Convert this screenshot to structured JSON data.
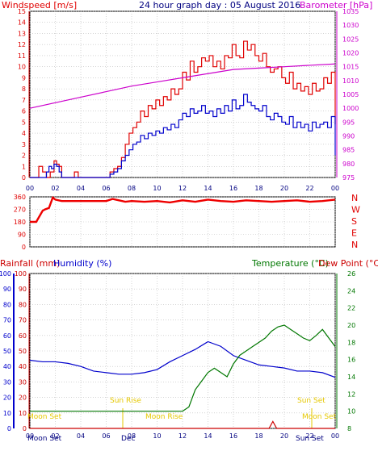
{
  "header": {
    "windspeed_title": "Windspeed [m/s]",
    "main_title": "24 hour graph day : 05 August 2016",
    "barometer_title": "Barometer [hPa]"
  },
  "lower_header": {
    "rainfall_title": "Rainfall (mm)",
    "humidity_title": "Humidity (%)",
    "temperature_title": "Temperature (°C)",
    "dewpoint_title": "Dew Point (°C)"
  },
  "colors": {
    "wind": "#e00000",
    "gust": "#e00000",
    "avg_wind": "#0000cc",
    "barometer": "#cc00cc",
    "direction": "#ee0000",
    "rain": "#cc0000",
    "humidity": "#0000cc",
    "temperature": "#007700",
    "dewpoint": "#cc0000",
    "sun": "#e6c800",
    "grid": "#bbbbbb"
  },
  "chart_data": [
    {
      "type": "line",
      "name": "wind-barometer",
      "x_tick_labels": [
        "00",
        "02",
        "04",
        "06",
        "08",
        "10",
        "12",
        "14",
        "16",
        "18",
        "20",
        "22",
        "00"
      ],
      "ylim_left": [
        0,
        15
      ],
      "yticks_left": [
        0,
        1,
        2,
        3,
        4,
        5,
        6,
        7,
        8,
        9,
        10,
        11,
        12,
        13,
        14,
        15
      ],
      "ylim_right": [
        975,
        1035
      ],
      "yticks_right": [
        975,
        980,
        985,
        990,
        995,
        1000,
        1005,
        1010,
        1015,
        1020,
        1025,
        1030,
        1035
      ],
      "grid": true,
      "series": [
        {
          "key": "gust",
          "axis": "left",
          "x": [
            0,
            0.5,
            0.7,
            1.0,
            1.3,
            1.6,
            1.9,
            2.1,
            2.3,
            2.5,
            3.0,
            3.5,
            3.8,
            4.0,
            5.0,
            6.0,
            6.3,
            6.6,
            6.9,
            7.2,
            7.5,
            7.8,
            8.1,
            8.4,
            8.7,
            9.0,
            9.3,
            9.6,
            9.9,
            10.2,
            10.5,
            10.8,
            11.1,
            11.4,
            11.7,
            12.0,
            12.3,
            12.6,
            12.9,
            13.2,
            13.5,
            13.8,
            14.1,
            14.4,
            14.7,
            15.0,
            15.3,
            15.6,
            15.9,
            16.2,
            16.5,
            16.8,
            17.1,
            17.4,
            17.7,
            18.0,
            18.3,
            18.6,
            18.9,
            19.2,
            19.5,
            19.8,
            20.1,
            20.4,
            20.7,
            21.0,
            21.3,
            21.6,
            21.9,
            22.2,
            22.5,
            22.8,
            23.1,
            23.4,
            23.7,
            24.0
          ],
          "y": [
            0,
            0,
            1.0,
            0.5,
            0,
            0.5,
            1.5,
            1.2,
            1.0,
            0,
            0,
            0.5,
            0,
            0,
            0,
            0,
            0.5,
            0.8,
            1.0,
            1.8,
            3.0,
            4.0,
            4.5,
            5.0,
            6.0,
            5.5,
            6.5,
            6.2,
            7.0,
            6.5,
            7.3,
            7.0,
            8.0,
            7.5,
            8.0,
            9.5,
            8.8,
            10.5,
            9.5,
            10.0,
            10.8,
            10.5,
            11.0,
            10.0,
            10.5,
            9.8,
            11.0,
            10.8,
            12.0,
            11.0,
            10.8,
            12.3,
            11.5,
            12.0,
            11.0,
            10.5,
            11.2,
            10.0,
            9.5,
            9.8,
            10.0,
            9.0,
            8.5,
            9.5,
            8.0,
            8.5,
            7.8,
            8.2,
            7.5,
            8.5,
            7.8,
            8.0,
            9.0,
            8.5,
            9.5,
            4.8
          ]
        },
        {
          "key": "avg_wind",
          "axis": "left",
          "x": [
            0,
            1.0,
            1.3,
            1.5,
            1.7,
            1.9,
            2.1,
            2.3,
            2.5,
            3.0,
            6.0,
            6.3,
            6.6,
            6.9,
            7.2,
            7.5,
            7.8,
            8.1,
            8.4,
            8.7,
            9.0,
            9.3,
            9.6,
            9.9,
            10.2,
            10.5,
            10.8,
            11.1,
            11.4,
            11.7,
            12.0,
            12.3,
            12.6,
            12.9,
            13.2,
            13.5,
            13.8,
            14.1,
            14.4,
            14.7,
            15.0,
            15.3,
            15.6,
            15.9,
            16.2,
            16.5,
            16.8,
            17.1,
            17.4,
            17.7,
            18.0,
            18.3,
            18.6,
            18.9,
            19.2,
            19.5,
            19.8,
            20.1,
            20.4,
            20.7,
            21.0,
            21.3,
            21.6,
            21.9,
            22.2,
            22.5,
            22.8,
            23.1,
            23.4,
            23.7,
            24.0
          ],
          "y": [
            0,
            0,
            0.5,
            1.0,
            0.8,
            1.2,
            1.0,
            0.5,
            0,
            0,
            0,
            0.3,
            0.5,
            0.8,
            1.5,
            2.0,
            2.5,
            3.0,
            3.2,
            3.8,
            3.5,
            4.0,
            3.8,
            4.2,
            4.0,
            4.5,
            4.3,
            4.8,
            4.5,
            5.2,
            5.8,
            5.5,
            6.2,
            5.8,
            6.0,
            6.5,
            5.8,
            6.0,
            5.5,
            6.2,
            5.8,
            6.5,
            6.0,
            7.0,
            6.2,
            6.5,
            7.5,
            6.8,
            6.5,
            6.2,
            6.0,
            6.5,
            5.5,
            5.2,
            5.8,
            5.5,
            5.0,
            4.8,
            5.5,
            4.5,
            5.0,
            4.5,
            4.8,
            4.2,
            5.0,
            4.5,
            4.8,
            5.0,
            4.5,
            5.5,
            2.0
          ]
        },
        {
          "key": "barometer",
          "axis": "right",
          "x": [
            0,
            2,
            4,
            6,
            8,
            10,
            12,
            14,
            16,
            18,
            20,
            22,
            24
          ],
          "y": [
            1000,
            1002,
            1004,
            1006,
            1008,
            1009.5,
            1011,
            1012.5,
            1014,
            1014.5,
            1015,
            1015.5,
            1016
          ]
        }
      ]
    },
    {
      "type": "line",
      "name": "wind-direction",
      "ylim": [
        0,
        360
      ],
      "yticks": [
        0,
        90,
        180,
        270,
        360
      ],
      "compass_labels": [
        "N",
        "W",
        "S",
        "E",
        "N"
      ],
      "grid": true,
      "series": [
        {
          "key": "direction",
          "x": [
            0,
            0.5,
            1.0,
            1.2,
            1.5,
            1.8,
            2.0,
            2.5,
            3.0,
            4.0,
            5.0,
            6.0,
            6.5,
            7.0,
            7.5,
            8.0,
            9.0,
            10.0,
            11.0,
            12.0,
            13.0,
            14.0,
            15.0,
            16.0,
            17.0,
            18.0,
            19.0,
            20.0,
            21.0,
            22.0,
            23.0,
            24.0
          ],
          "y": [
            180,
            180,
            260,
            270,
            280,
            355,
            340,
            330,
            330,
            330,
            330,
            330,
            345,
            335,
            325,
            330,
            325,
            330,
            320,
            335,
            325,
            340,
            330,
            325,
            335,
            330,
            325,
            330,
            335,
            325,
            330,
            340
          ]
        }
      ]
    },
    {
      "type": "line",
      "name": "rain-humidity-temperature",
      "x_tick_labels": [
        "00",
        "02",
        "04",
        "06",
        "08",
        "10",
        "12",
        "14",
        "16",
        "18",
        "20",
        "22",
        "00"
      ],
      "ylim_left": [
        0,
        100
      ],
      "yticks_left": [
        0,
        10,
        20,
        30,
        40,
        50,
        60,
        70,
        80,
        90,
        100
      ],
      "ylim_right": [
        8,
        26
      ],
      "yticks_right": [
        8,
        10,
        12,
        14,
        16,
        18,
        20,
        22,
        24,
        26
      ],
      "grid": true,
      "series": [
        {
          "key": "humidity",
          "axis": "left",
          "x": [
            0,
            1,
            2,
            3,
            4,
            5,
            6,
            7,
            8,
            9,
            10,
            11,
            12,
            13,
            14,
            15,
            16,
            17,
            18,
            19,
            20,
            21,
            22,
            23,
            24
          ],
          "y": [
            44,
            43,
            43,
            42,
            40,
            37,
            36,
            35,
            35,
            36,
            38,
            43,
            47,
            51,
            56,
            53,
            47,
            44,
            41,
            40,
            39,
            37,
            37,
            36,
            33
          ]
        },
        {
          "key": "temperature",
          "axis": "right",
          "x": [
            0,
            1,
            2,
            3,
            4,
            5,
            6,
            7,
            8,
            9,
            10,
            11,
            12,
            12.5,
            13,
            13.5,
            14,
            14.5,
            15,
            15.5,
            16,
            16.5,
            17,
            17.5,
            18,
            18.5,
            19,
            19.5,
            20,
            20.5,
            21,
            21.5,
            22,
            22.5,
            23,
            23.5,
            24
          ],
          "y": [
            10,
            10,
            10,
            10,
            10,
            10,
            10,
            10,
            10,
            10,
            10,
            10,
            10,
            10.5,
            12.5,
            13.5,
            14.5,
            15,
            14.5,
            14,
            15.5,
            16.5,
            17,
            17.5,
            18,
            18.5,
            19.3,
            19.8,
            20,
            19.5,
            19,
            18.5,
            18.2,
            18.8,
            19.5,
            18.5,
            17.5
          ]
        },
        {
          "key": "rain",
          "axis": "left",
          "x": [
            0,
            18.8,
            19.1,
            19.4,
            19.7,
            24
          ],
          "y": [
            0,
            0,
            4.5,
            0,
            0,
            0
          ]
        }
      ]
    }
  ],
  "sun_moon": {
    "sun_rise": "Sun Rise",
    "sun_set": "Sun Set",
    "moon_rise": "Moon Rise",
    "moon_set": "Moon Set",
    "moon_set_2": "Moon Set",
    "moon_set_axis": "Moon Set",
    "dec_label": "Dec",
    "sun_set_axis": "Sun Set"
  }
}
